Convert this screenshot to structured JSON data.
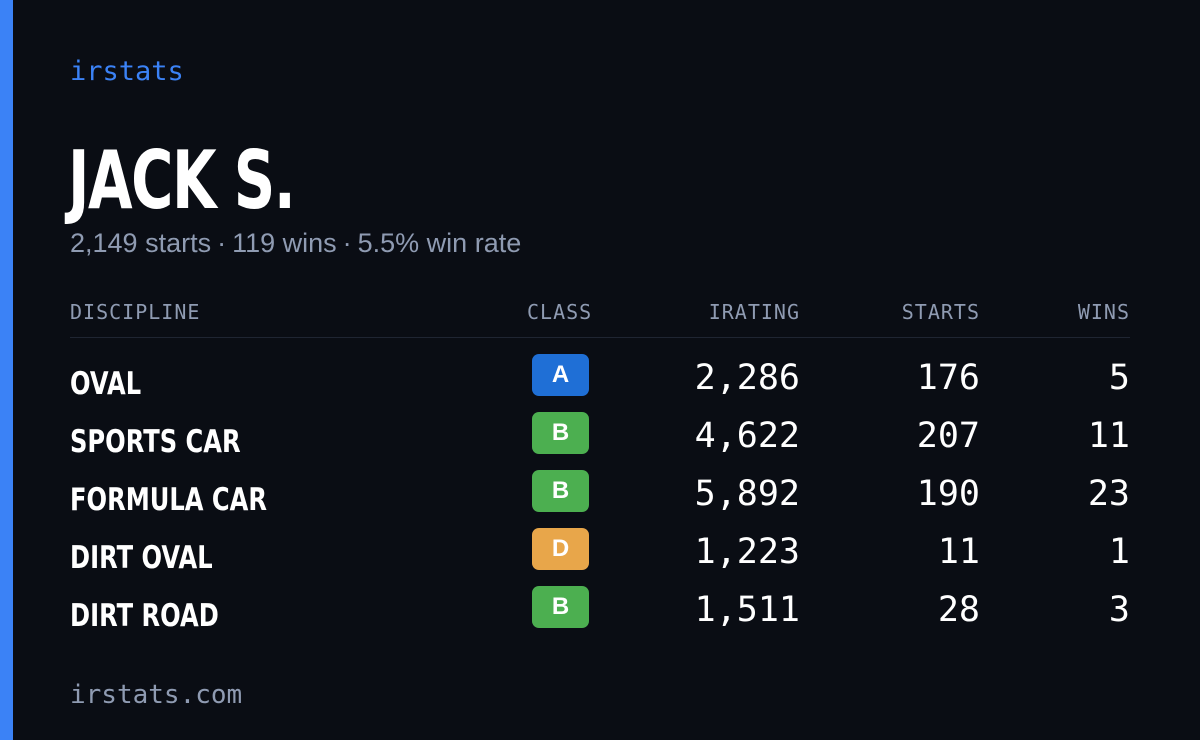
{
  "brand": "irstats",
  "player": {
    "name": "JACK S.",
    "starts": "2,149 starts",
    "wins": "119 wins",
    "win_rate": "5.5% win rate",
    "separator": "·"
  },
  "table": {
    "headers": {
      "discipline": "DISCIPLINE",
      "class": "CLASS",
      "irating": "IRATING",
      "starts": "STARTS",
      "wins": "WINS"
    },
    "rows": [
      {
        "discipline": "OVAL",
        "class": "A",
        "class_color": "#1f6fd6",
        "irating": "2,286",
        "starts": "176",
        "wins": "5"
      },
      {
        "discipline": "SPORTS CAR",
        "class": "B",
        "class_color": "#4caf50",
        "irating": "4,622",
        "starts": "207",
        "wins": "11"
      },
      {
        "discipline": "FORMULA CAR",
        "class": "B",
        "class_color": "#4caf50",
        "irating": "5,892",
        "starts": "190",
        "wins": "23"
      },
      {
        "discipline": "DIRT OVAL",
        "class": "D",
        "class_color": "#e8a64a",
        "irating": "1,223",
        "starts": "11",
        "wins": "1"
      },
      {
        "discipline": "DIRT ROAD",
        "class": "B",
        "class_color": "#4caf50",
        "irating": "1,511",
        "starts": "28",
        "wins": "3"
      }
    ]
  },
  "footer": "irstats.com",
  "colors": {
    "accent": "#3b82f6",
    "background": "#0a0d14",
    "muted_text": "#8f9bb2"
  }
}
